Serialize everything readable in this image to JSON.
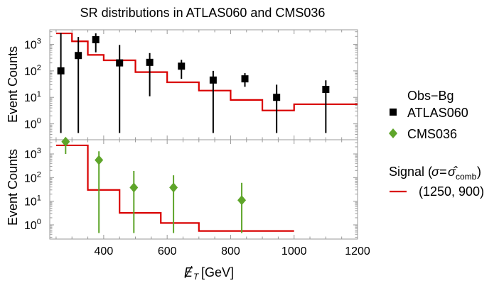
{
  "chart_data": {
    "type": "scatter",
    "title": "SR distributions in ATLAS060 and CMS036",
    "xlabel_main": "E",
    "xlabel_sub": "T",
    "xlabel_unit": "[GeV]",
    "xlim": [
      230,
      1200
    ],
    "xticks": [
      400,
      600,
      800,
      1000,
      1200
    ],
    "panels": [
      {
        "name": "ATLAS060",
        "ylabel": "Event Counts",
        "ylim_log10": [
          -0.6,
          3.55
        ],
        "points": [
          {
            "x": 265,
            "y": 100,
            "lo": 0.45,
            "hi": 2700
          },
          {
            "x": 320,
            "y": 380,
            "lo": 0.45,
            "hi": 1900
          },
          {
            "x": 375,
            "y": 1500,
            "lo": 500,
            "hi": 2600
          },
          {
            "x": 450,
            "y": 200,
            "lo": 0.45,
            "hi": 950
          },
          {
            "x": 545,
            "y": 210,
            "lo": 11,
            "hi": 470
          },
          {
            "x": 645,
            "y": 150,
            "lo": 50,
            "hi": 260
          },
          {
            "x": 745,
            "y": 45,
            "lo": 0.45,
            "hi": 100
          },
          {
            "x": 845,
            "y": 50,
            "lo": 25,
            "hi": 82
          },
          {
            "x": 945,
            "y": 10,
            "lo": 0.45,
            "hi": 30
          },
          {
            "x": 1100,
            "y": 20,
            "lo": 0.45,
            "hi": 44
          }
        ],
        "step": {
          "edges": [
            250,
            300,
            350,
            400,
            500,
            600,
            700,
            800,
            900,
            1000,
            1200
          ],
          "values": [
            2600,
            1300,
            400,
            250,
            90,
            37,
            18,
            8,
            3.2,
            5.5
          ]
        }
      },
      {
        "name": "CMS036",
        "ylabel": "Event Counts",
        "ylim_log10": [
          -0.6,
          3.6
        ],
        "points": [
          {
            "x": 280,
            "y": 3300,
            "lo": 1000,
            "hi": 5500
          },
          {
            "x": 385,
            "y": 550,
            "lo": 0.45,
            "hi": 1300
          },
          {
            "x": 495,
            "y": 38,
            "lo": 0.45,
            "hi": 190
          },
          {
            "x": 620,
            "y": 38,
            "lo": 0.45,
            "hi": 125
          },
          {
            "x": 835,
            "y": 11,
            "lo": 0.45,
            "hi": 60
          }
        ],
        "step": {
          "edges": [
            250,
            350,
            450,
            580,
            700,
            1000
          ],
          "values": [
            2300,
            30,
            3.2,
            1.2,
            0.55
          ]
        }
      }
    ],
    "ytick_labels": [
      "10",
      "10",
      "10",
      "10"
    ],
    "ytick_exponents": [
      "0",
      "1",
      "2",
      "3"
    ]
  },
  "legend": {
    "heading": "Obs−Bg",
    "atlas_label": "ATLAS060",
    "cms_label": "CMS036",
    "signal_prefix": "Signal (",
    "signal_sigma": "σ=",
    "signal_hat": "σ̂",
    "signal_sub": "comb",
    "signal_suffix": ")",
    "signal_label": "(1250, 900)"
  },
  "colors": {
    "atlas_marker": "#000000",
    "cms_marker": "#5ea52a",
    "signal_line": "#d90000",
    "frame": "#999999"
  }
}
